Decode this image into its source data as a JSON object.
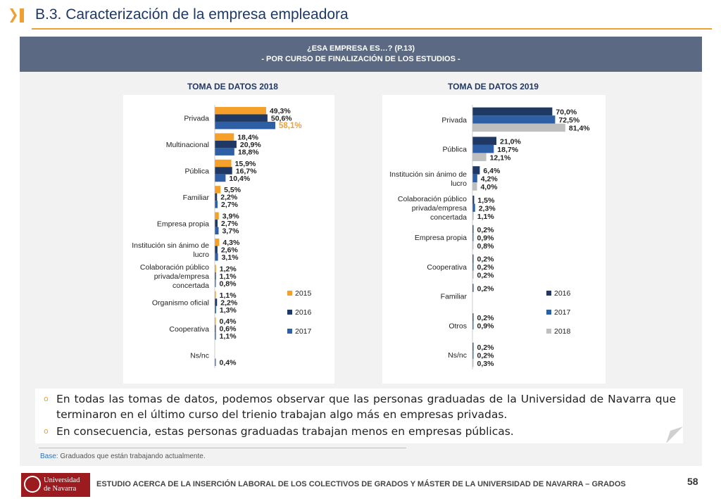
{
  "header": {
    "title": "B.3. Caracterización de la empresa empleadora"
  },
  "banner": {
    "line1": "¿ESA EMPRESA ES…? (P.13)",
    "line2": "- POR CURSO DE FINALIZACIÓN DE LOS ESTUDIOS -"
  },
  "colors": {
    "accent": "#f0a030",
    "title": "#1f3864",
    "banner": "#5b6a82"
  },
  "charts": [
    {
      "section_title": "TOMA DE DATOS 2018"
    },
    {
      "section_title": "TOMA DE DATOS 2019"
    }
  ],
  "chart_data": [
    {
      "type": "bar",
      "orientation": "horizontal",
      "title": "TOMA DE DATOS 2018",
      "categories": [
        "Privada",
        "Multinacional",
        "Pública",
        "Familiar",
        "Empresa propia",
        "Institución sin ánimo de lucro",
        "Colaboración público privada/empresa concertada",
        "Organismo oficial",
        "Cooperativa",
        "Ns/nc"
      ],
      "series": [
        {
          "name": "2015",
          "color": "#f5a02a",
          "values": [
            49.3,
            18.4,
            15.9,
            5.5,
            3.9,
            4.3,
            1.2,
            1.1,
            0.4,
            null
          ]
        },
        {
          "name": "2016",
          "color": "#1f3864",
          "values": [
            50.6,
            20.9,
            16.7,
            2.2,
            2.7,
            2.6,
            1.1,
            2.2,
            0.6,
            null
          ]
        },
        {
          "name": "2017",
          "color": "#2e5fa4",
          "values": [
            58.1,
            18.8,
            10.4,
            2.7,
            3.7,
            3.1,
            0.8,
            1.3,
            1.1,
            0.4
          ]
        }
      ],
      "highlight": {
        "series": "2017",
        "category": "Privada",
        "color": "#f0a030"
      },
      "legend": "right",
      "grid": false
    },
    {
      "type": "bar",
      "orientation": "horizontal",
      "title": "TOMA DE DATOS 2019",
      "categories": [
        "Privada",
        "Pública",
        "Institución sin ánimo de lucro",
        "Colaboración público privada/empresa concertada",
        "Empresa propia",
        "Cooperativa",
        "Familiar",
        "Otros",
        "Ns/nc"
      ],
      "series": [
        {
          "name": "2016",
          "color": "#1f3864",
          "values": [
            70.0,
            21.0,
            6.4,
            1.5,
            0.2,
            0.2,
            0.2,
            0.2,
            0.2
          ]
        },
        {
          "name": "2017",
          "color": "#2e5fa4",
          "values": [
            72.5,
            18.7,
            4.2,
            2.3,
            0.9,
            0.2,
            null,
            0.9,
            0.2
          ]
        },
        {
          "name": "2018",
          "color": "#bfbfbf",
          "values": [
            81.4,
            12.1,
            4.0,
            1.1,
            0.8,
            0.2,
            null,
            null,
            0.3
          ]
        }
      ],
      "legend": "right",
      "grid": false
    }
  ],
  "bullets": [
    {
      "marker": "o",
      "text": "En todas las tomas de datos, podemos observar que las personas graduadas de la Universidad de Navarra que terminaron en el último curso del trienio trabajan algo más en empresas privadas."
    },
    {
      "marker": "o",
      "text": "En consecuencia, estas personas graduadas trabajan menos en empresas públicas."
    }
  ],
  "base": {
    "label": "Base:",
    "text": "Graduados que están trabajando actualmente."
  },
  "footer": {
    "logo_line1": "Universidad",
    "logo_line2": "de Navarra",
    "text": "ESTUDIO ACERCA DE LA INSERCIÓN LABORAL DE LOS COLECTIVOS DE GRADOS Y MÁSTER DE LA UNIVERSIDAD DE NAVARRA – GRADOS",
    "page_number": "58"
  }
}
